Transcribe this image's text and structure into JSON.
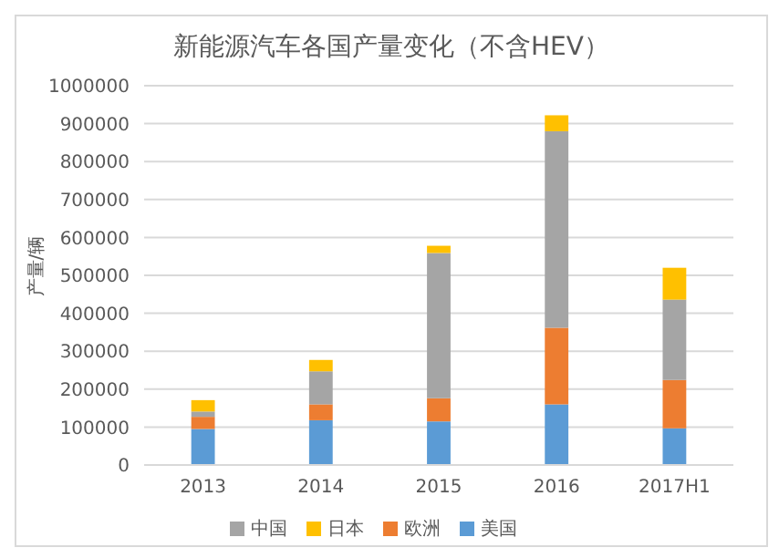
{
  "chart_data": {
    "type": "bar",
    "title": "新能源汽车各国产量变化（不含HEV）",
    "ylabel": "产量/辆",
    "categories": [
      "2013",
      "2014",
      "2015",
      "2016",
      "2017H1"
    ],
    "stacked": true,
    "series": [
      {
        "name": "美国",
        "color": "#5b9bd5",
        "values": [
          95000,
          118000,
          115000,
          160000,
          97000
        ]
      },
      {
        "name": "欧洲",
        "color": "#ed7d31",
        "values": [
          32000,
          42000,
          61000,
          202000,
          127000
        ]
      },
      {
        "name": "中国",
        "color": "#a5a5a5",
        "values": [
          14000,
          87000,
          383000,
          518000,
          212000
        ]
      },
      {
        "name": "日本",
        "color": "#ffc000",
        "values": [
          30000,
          30000,
          19000,
          42000,
          84000
        ]
      }
    ],
    "ylim": [
      0,
      1000000
    ],
    "yticks": [
      0,
      100000,
      200000,
      300000,
      400000,
      500000,
      600000,
      700000,
      800000,
      900000,
      1000000
    ],
    "grid": "y",
    "legend": "bottom"
  }
}
